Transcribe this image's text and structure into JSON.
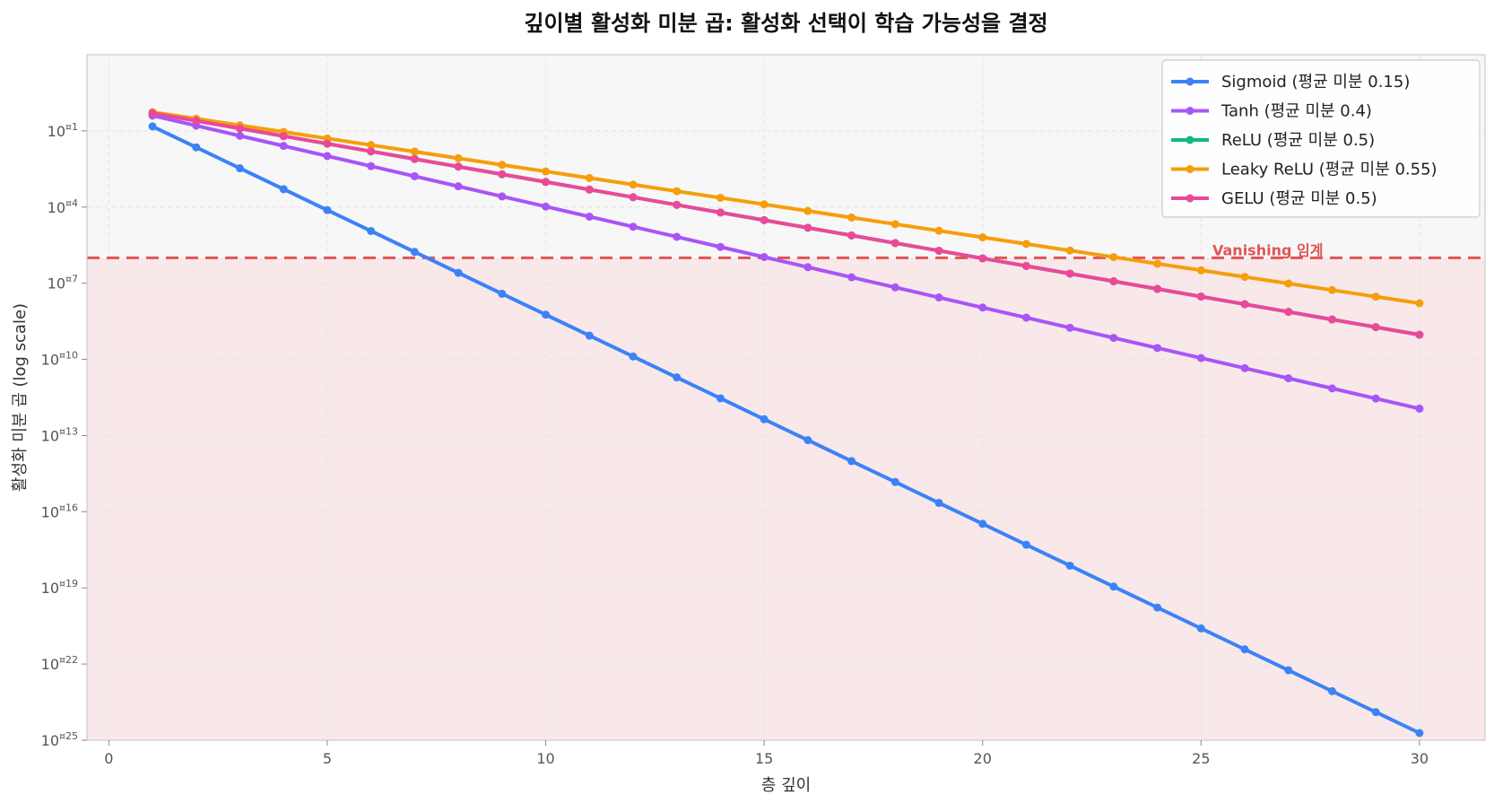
{
  "chart_data": {
    "type": "line",
    "title": "깊이별 활성화 미분 곱: 활성화 선택이 학습 가능성을 결정",
    "xlabel": "층 깊이",
    "ylabel": "활성화 미분 곱 (log scale)",
    "yscale": "log",
    "xlim": [
      -0.5,
      31.5
    ],
    "ylim": [
      1e-25,
      100.0
    ],
    "x_ticks": [
      0,
      5,
      10,
      15,
      20,
      25,
      30
    ],
    "x_tick_labels": [
      "0",
      "5",
      "10",
      "15",
      "20",
      "25",
      "30"
    ],
    "y_tick_exponents": [
      -1,
      -4,
      -7,
      -10,
      -13,
      -16,
      -19,
      -22,
      -25
    ],
    "y_tick_labels": [
      "10¤1",
      "10¤4",
      "10¤7",
      "10¤10",
      "10¤13",
      "10¤16",
      "10¤19",
      "10¤22",
      "10¤25"
    ],
    "grid": true,
    "legend_position": "top-right",
    "x": [
      1,
      30
    ],
    "series": [
      {
        "name": "Sigmoid (평균 미분 0.15)",
        "base": 0.15,
        "color": "#3b82f6"
      },
      {
        "name": "Tanh (평균 미분 0.4)",
        "base": 0.4,
        "color": "#a855f7"
      },
      {
        "name": "ReLU (평균 미분 0.5)",
        "base": 0.5,
        "color": "#10b981"
      },
      {
        "name": "Leaky ReLU (평균 미분 0.55)",
        "base": 0.55,
        "color": "#f59e0b"
      },
      {
        "name": "GELU (평균 미분 0.5)",
        "base": 0.5,
        "color": "#ec4899"
      }
    ],
    "threshold": {
      "value": 1e-06,
      "label": "Vanishing 임계",
      "color": "#e05555"
    },
    "regions": {
      "above_color": "#f7f7f7",
      "below_color": "#f8e8ea"
    }
  }
}
